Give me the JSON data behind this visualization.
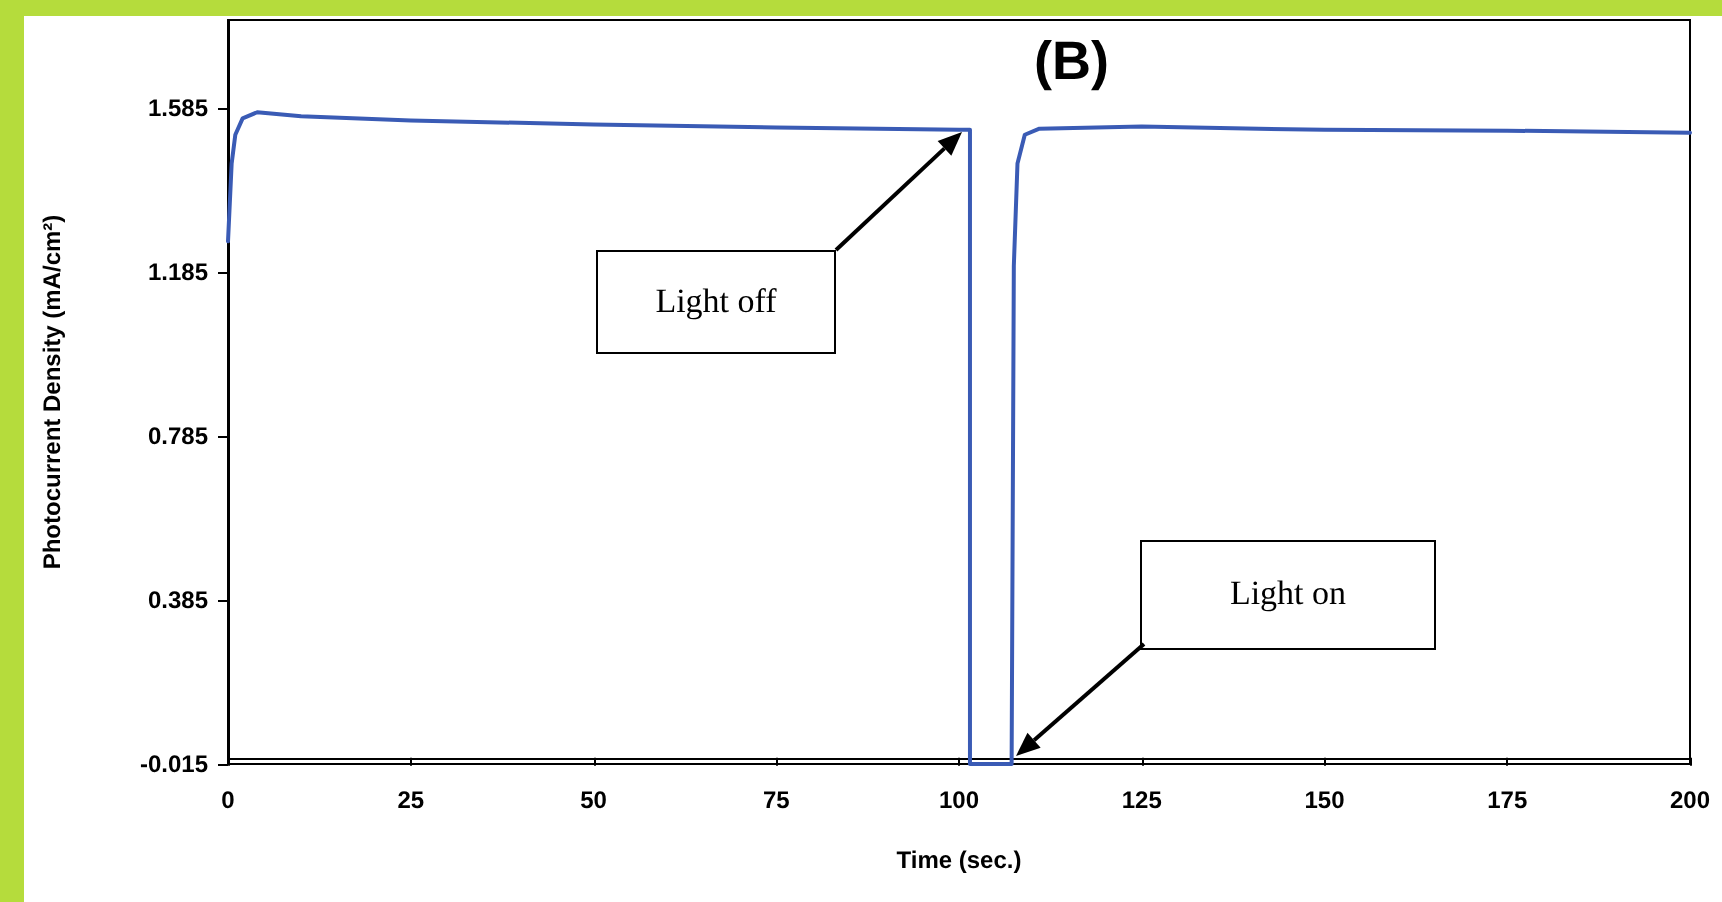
{
  "chart_data": {
    "type": "line",
    "title": "(B)",
    "xlabel": "Time (sec.)",
    "ylabel": "Photocurrent Density (mA/cm²)",
    "annotations": [
      "Light off",
      "Light on"
    ],
    "xlim": [
      0,
      200
    ],
    "xticks": [
      0,
      25,
      50,
      75,
      100,
      125,
      150,
      175,
      200
    ],
    "ylim": [
      -0.015,
      1.8
    ],
    "yticks": [
      -0.015,
      0.385,
      0.785,
      1.185,
      1.585
    ],
    "grid": false,
    "marker": "none",
    "line_style": "solid",
    "series": [
      {
        "color": "#3a5bb5",
        "x": [
          0,
          0.5,
          1,
          2,
          4,
          10,
          25,
          50,
          75,
          100,
          101.5,
          101.5,
          107.2,
          107.5,
          108,
          109,
          111,
          125,
          150,
          175,
          200
        ],
        "values": [
          1.26,
          1.45,
          1.52,
          1.56,
          1.575,
          1.565,
          1.555,
          1.545,
          1.538,
          1.532,
          1.532,
          -0.015,
          -0.015,
          1.2,
          1.45,
          1.52,
          1.535,
          1.54,
          1.532,
          1.53,
          1.525
        ]
      }
    ]
  }
}
